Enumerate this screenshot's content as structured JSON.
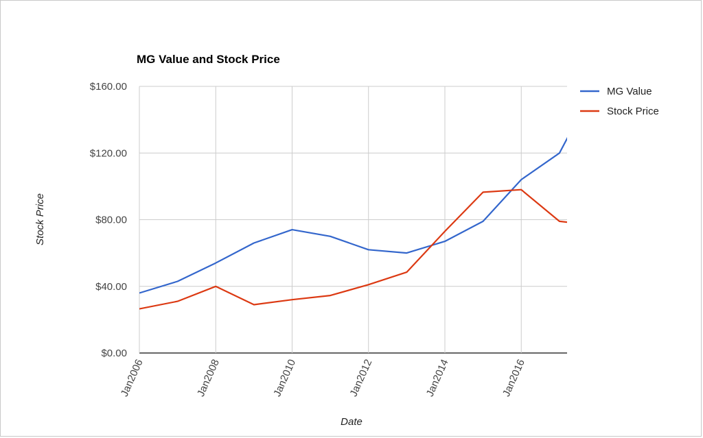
{
  "chart_data": {
    "type": "line",
    "title": "MG Value and Stock Price",
    "xlabel": "Date",
    "ylabel": "Stock Price",
    "x_tick_labels": [
      "Jan2006",
      "Jan2008",
      "Jan2010",
      "Jan2012",
      "Jan2014",
      "Jan2016"
    ],
    "y_tick_labels": [
      "$0.00",
      "$40.00",
      "$80.00",
      "$120.00",
      "$160.00"
    ],
    "y_ticks": [
      0,
      40,
      80,
      120,
      160
    ],
    "x_ticks": [
      2006,
      2008,
      2010,
      2012,
      2014,
      2016
    ],
    "xlim": [
      2006,
      2017.2
    ],
    "ylim": [
      0,
      160
    ],
    "grid": true,
    "legend_position": "right",
    "series": [
      {
        "name": "MG Value",
        "color": "#3366cc",
        "x": [
          2006,
          2007,
          2008,
          2009,
          2010,
          2011,
          2012,
          2013,
          2014,
          2015,
          2016,
          2017,
          2017.3
        ],
        "y": [
          36,
          43,
          54,
          66,
          74,
          70,
          62,
          60,
          67,
          79,
          104,
          120,
          133
        ]
      },
      {
        "name": "Stock Price",
        "color": "#dc3912",
        "x": [
          2006,
          2007,
          2008,
          2009,
          2010,
          2011,
          2012,
          2013,
          2014,
          2015,
          2016,
          2017,
          2017.2
        ],
        "y": [
          26.5,
          31,
          40,
          29,
          32,
          34.5,
          41,
          48.5,
          73,
          96.5,
          98,
          79,
          78.5
        ]
      }
    ]
  }
}
